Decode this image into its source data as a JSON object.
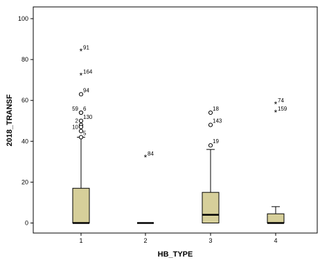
{
  "chart_data": {
    "type": "boxplot",
    "title": "",
    "xlabel": "HB_TYPE",
    "ylabel": "2018_TRANSF",
    "ylim": [
      -5,
      103
    ],
    "yticks": [
      0,
      20,
      40,
      60,
      80,
      100
    ],
    "grid": false,
    "legend": "none",
    "box_color": "#d6cf9a",
    "categories": [
      "1",
      "2",
      "3",
      "4"
    ],
    "boxes": [
      {
        "category": "1",
        "min": 0,
        "q1": 0,
        "median": 0,
        "q3": 17,
        "max": 42
      },
      {
        "category": "2",
        "min": 0,
        "q1": 0,
        "median": 0,
        "q3": 0,
        "max": 0
      },
      {
        "category": "3",
        "min": 0,
        "q1": 0,
        "median": 4,
        "q3": 15,
        "max": 36
      },
      {
        "category": "4",
        "min": 0,
        "q1": 0,
        "median": 0,
        "q3": 4.5,
        "max": 8
      }
    ],
    "outliers": [
      {
        "category": "1",
        "value": 84,
        "marker": "star",
        "label": "91"
      },
      {
        "category": "1",
        "value": 72,
        "marker": "star",
        "label": "164"
      },
      {
        "category": "1",
        "value": 63,
        "marker": "circle",
        "label": "94"
      },
      {
        "category": "1",
        "value": 54,
        "marker": "circle",
        "label": "59",
        "side": "left"
      },
      {
        "category": "1",
        "value": 54,
        "marker": "circle",
        "label": "6"
      },
      {
        "category": "1",
        "value": 50,
        "marker": "circle",
        "label": "130"
      },
      {
        "category": "1",
        "value": 48,
        "marker": "circle",
        "label": "2",
        "side": "left"
      },
      {
        "category": "1",
        "value": 47,
        "marker": "circle",
        "label": ""
      },
      {
        "category": "1",
        "value": 45,
        "marker": "circle",
        "label": "10",
        "side": "left"
      },
      {
        "category": "1",
        "value": 42,
        "marker": "circle",
        "label": "5"
      },
      {
        "category": "2",
        "value": 32,
        "marker": "star",
        "label": "84"
      },
      {
        "category": "3",
        "value": 54,
        "marker": "circle",
        "label": "18"
      },
      {
        "category": "3",
        "value": 48,
        "marker": "circle",
        "label": "143"
      },
      {
        "category": "3",
        "value": 38,
        "marker": "circle",
        "label": "19"
      },
      {
        "category": "4",
        "value": 58,
        "marker": "star",
        "label": "74"
      },
      {
        "category": "4",
        "value": 54,
        "marker": "star",
        "label": "159"
      }
    ]
  }
}
